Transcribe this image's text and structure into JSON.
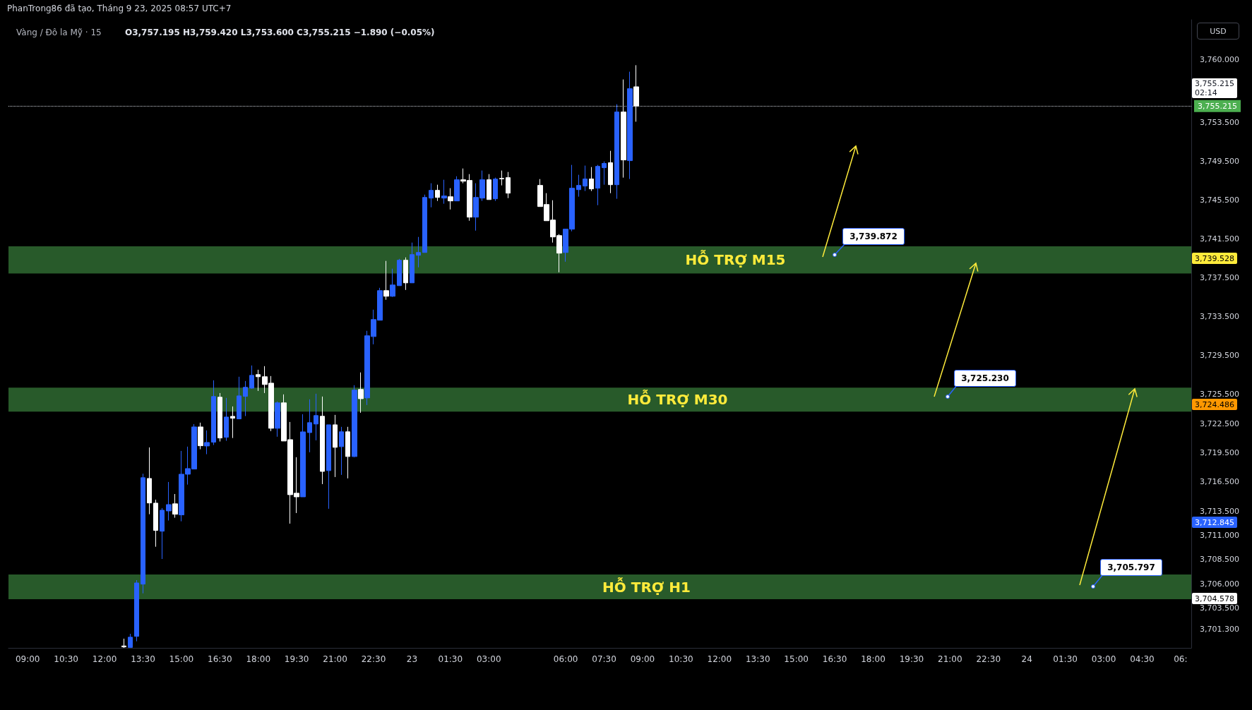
{
  "chart_data": {
    "type": "candlestick",
    "title": "Vàng / Đô la Mỹ · 15",
    "subtitle": "O3,757.195 H3,759.420 L3,753.600 C3,755.215 −1.890 (−0.05%)",
    "annotations": [
      "PhanTrong86 đã tạo, Tháng 9 23, 2025 08:57 UTC+7",
      "USD",
      "3,755.215",
      "02:14",
      "3,739.872",
      "3,725.230",
      "3,705.797",
      "3,739.528",
      "3,724.486",
      "3,712.845",
      "3,704.578"
    ],
    "x": [
      "2025-09-22T12:45",
      "2025-09-22T13:00",
      "2025-09-22T13:15",
      "2025-09-22T13:30",
      "2025-09-22T13:45",
      "2025-09-22T14:00",
      "2025-09-22T14:15",
      "2025-09-22T14:30",
      "2025-09-22T14:45",
      "2025-09-22T15:00",
      "2025-09-22T15:15",
      "2025-09-22T15:30",
      "2025-09-22T15:45",
      "2025-09-22T16:00",
      "2025-09-22T16:15",
      "2025-09-22T16:30",
      "2025-09-22T16:45",
      "2025-09-22T17:00",
      "2025-09-22T17:15",
      "2025-09-22T17:30",
      "2025-09-22T17:45",
      "2025-09-22T18:00",
      "2025-09-22T18:15",
      "2025-09-22T18:30",
      "2025-09-22T18:45",
      "2025-09-22T19:00",
      "2025-09-22T19:15",
      "2025-09-22T19:30",
      "2025-09-22T19:45",
      "2025-09-22T20:00",
      "2025-09-22T20:15",
      "2025-09-22T20:30",
      "2025-09-22T20:45",
      "2025-09-22T21:00",
      "2025-09-22T21:15",
      "2025-09-22T21:30",
      "2025-09-22T21:45",
      "2025-09-22T22:00",
      "2025-09-22T22:15",
      "2025-09-22T22:30",
      "2025-09-22T22:45",
      "2025-09-22T23:00",
      "2025-09-22T23:15",
      "2025-09-22T23:30",
      "2025-09-22T23:45",
      "2025-09-23T00:00",
      "2025-09-23T00:15",
      "2025-09-23T00:30",
      "2025-09-23T00:45",
      "2025-09-23T01:00",
      "2025-09-23T01:15",
      "2025-09-23T01:30",
      "2025-09-23T01:45",
      "2025-09-23T02:00",
      "2025-09-23T02:15",
      "2025-09-23T02:30",
      "2025-09-23T02:45",
      "2025-09-23T03:00",
      "2025-09-23T03:15",
      "2025-09-23T03:30",
      "2025-09-23T03:45",
      "2025-09-23T05:00",
      "2025-09-23T05:15",
      "2025-09-23T05:30",
      "2025-09-23T05:45",
      "2025-09-23T06:00",
      "2025-09-23T06:15",
      "2025-09-23T06:30",
      "2025-09-23T06:45",
      "2025-09-23T07:00",
      "2025-09-23T07:15",
      "2025-09-23T07:30",
      "2025-09-23T07:45",
      "2025-09-23T08:00",
      "2025-09-23T08:15",
      "2025-09-23T08:30",
      "2025-09-23T08:45"
    ],
    "ohlc": [
      [
        3699.6,
        3700.35,
        3699.4,
        3699.5
      ],
      [
        3699.45,
        3700.85,
        3699.45,
        3700.5
      ],
      [
        3700.59,
        3706.38,
        3700.08,
        3706.09
      ],
      [
        3705.97,
        3717.34,
        3705.02,
        3716.93
      ],
      [
        3716.85,
        3720.05,
        3713.17,
        3714.33
      ],
      [
        3714.31,
        3714.67,
        3709.82,
        3711.5
      ],
      [
        3711.42,
        3713.8,
        3708.56,
        3713.58
      ],
      [
        3713.51,
        3716.49,
        3712.52,
        3714.16
      ],
      [
        3714.24,
        3715.25,
        3712.81,
        3713.17
      ],
      [
        3713.1,
        3719.69,
        3712.44,
        3717.29
      ],
      [
        3717.29,
        3720.13,
        3716.22,
        3717.87
      ],
      [
        3717.82,
        3722.45,
        3717.82,
        3722.16
      ],
      [
        3722.16,
        3722.6,
        3719.86,
        3720.22
      ],
      [
        3720.2,
        3721.8,
        3719.35,
        3720.56
      ],
      [
        3720.59,
        3726.96,
        3720.3,
        3725.29
      ],
      [
        3725.22,
        3725.65,
        3720.66,
        3721.02
      ],
      [
        3721.1,
        3725.15,
        3720.73,
        3723.18
      ],
      [
        3723.25,
        3724.27,
        3721.02,
        3723.06
      ],
      [
        3722.99,
        3727.33,
        3722.99,
        3725.36
      ],
      [
        3725.31,
        3726.89,
        3723.28,
        3726.24
      ],
      [
        3726.16,
        3728.49,
        3726.09,
        3727.47
      ],
      [
        3727.55,
        3728.05,
        3725.87,
        3727.33
      ],
      [
        3727.33,
        3728.42,
        3725.65,
        3726.53
      ],
      [
        3726.67,
        3727.4,
        3721.73,
        3722.02
      ],
      [
        3722.02,
        3724.78,
        3721.15,
        3724.64
      ],
      [
        3724.64,
        3725.51,
        3720.71,
        3720.71
      ],
      [
        3720.85,
        3722.67,
        3712.2,
        3715.18
      ],
      [
        3715.33,
        3719.04,
        3713.29,
        3714.96
      ],
      [
        3714.96,
        3723.47,
        3714.96,
        3721.65
      ],
      [
        3721.58,
        3725.0,
        3719.55,
        3722.6
      ],
      [
        3722.46,
        3725.58,
        3720.78,
        3723.33
      ],
      [
        3723.26,
        3725.29,
        3716.27,
        3717.58
      ],
      [
        3717.66,
        3722.38,
        3713.73,
        3722.38
      ],
      [
        3722.38,
        3723.4,
        3717.0,
        3720.06
      ],
      [
        3720.13,
        3722.17,
        3717.22,
        3721.66
      ],
      [
        3721.66,
        3722.17,
        3716.86,
        3719.11
      ],
      [
        3719.11,
        3726.46,
        3719.04,
        3725.95
      ],
      [
        3726.02,
        3727.77,
        3723.62,
        3725.07
      ],
      [
        3725.15,
        3732.06,
        3724.42,
        3731.55
      ],
      [
        3731.47,
        3734.24,
        3730.67,
        3733.22
      ],
      [
        3733.15,
        3736.49,
        3733.15,
        3736.2
      ],
      [
        3736.2,
        3739.26,
        3735.26,
        3735.62
      ],
      [
        3735.62,
        3738.46,
        3735.55,
        3736.78
      ],
      [
        3736.71,
        3739.47,
        3736.71,
        3739.33
      ],
      [
        3739.33,
        3739.62,
        3736.27,
        3737.0
      ],
      [
        3737.0,
        3741.15,
        3737.0,
        3739.91
      ],
      [
        3739.84,
        3741.73,
        3738.6,
        3740.13
      ],
      [
        3740.13,
        3746.09,
        3740.13,
        3745.8
      ],
      [
        3745.73,
        3747.26,
        3744.78,
        3746.53
      ],
      [
        3746.53,
        3747.11,
        3745.44,
        3745.8
      ],
      [
        3745.73,
        3747.62,
        3745.15,
        3745.95
      ],
      [
        3745.87,
        3746.75,
        3744.56,
        3745.44
      ],
      [
        3745.44,
        3747.98,
        3745.44,
        3747.62
      ],
      [
        3747.62,
        3748.78,
        3747.26,
        3747.47
      ],
      [
        3747.55,
        3748.2,
        3743.4,
        3743.77
      ],
      [
        3743.77,
        3747.26,
        3742.38,
        3745.8
      ],
      [
        3745.73,
        3748.57,
        3745.44,
        3747.62
      ],
      [
        3747.62,
        3748.2,
        3745.58,
        3745.58
      ],
      [
        3745.66,
        3747.84,
        3745.44,
        3747.69
      ],
      [
        3747.76,
        3748.57,
        3747.04,
        3747.71
      ],
      [
        3747.84,
        3748.42,
        3745.73,
        3746.24
      ],
      [
        3747.04,
        3747.69,
        3744.86,
        3744.86
      ],
      [
        3745.07,
        3746.24,
        3743.4,
        3743.4
      ],
      [
        3743.47,
        3745.51,
        3741.15,
        3741.73
      ],
      [
        3741.87,
        3742.02,
        3738.09,
        3740.06
      ],
      [
        3740.13,
        3742.53,
        3739.18,
        3742.53
      ],
      [
        3742.53,
        3749.15,
        3742.31,
        3746.75
      ],
      [
        3746.6,
        3748.13,
        3745.88,
        3747.04
      ],
      [
        3746.97,
        3749.08,
        3746.46,
        3747.7
      ],
      [
        3747.7,
        3748.93,
        3746.46,
        3746.68
      ],
      [
        3746.75,
        3749.15,
        3745.0,
        3749.0
      ],
      [
        3748.86,
        3749.51,
        3747.11,
        3749.3
      ],
      [
        3749.37,
        3750.6,
        3746.24,
        3747.11
      ],
      [
        3747.11,
        3755.4,
        3745.66,
        3754.6
      ],
      [
        3754.6,
        3757.95,
        3747.84,
        3749.66
      ],
      [
        3749.59,
        3758.75,
        3747.7,
        3757.0
      ],
      [
        3757.195,
        3759.42,
        3753.6,
        3755.215
      ]
    ],
    "xlim": [
      "2025-09-22T08:15",
      "2025-09-24T06:25"
    ],
    "xticks": [
      {
        "value": "2025-09-22T09:00",
        "label": "09:00"
      },
      {
        "value": "2025-09-22T10:30",
        "label": "10:30"
      },
      {
        "value": "2025-09-22T12:00",
        "label": "12:00"
      },
      {
        "value": "2025-09-22T13:30",
        "label": "13:30"
      },
      {
        "value": "2025-09-22T15:00",
        "label": "15:00"
      },
      {
        "value": "2025-09-22T16:30",
        "label": "16:30"
      },
      {
        "value": "2025-09-22T18:00",
        "label": "18:00"
      },
      {
        "value": "2025-09-22T19:30",
        "label": "19:30"
      },
      {
        "value": "2025-09-22T21:00",
        "label": "21:00"
      },
      {
        "value": "2025-09-22T22:30",
        "label": "22:30"
      },
      {
        "value": "2025-09-23T00:00",
        "label": "23"
      },
      {
        "value": "2025-09-23T01:30",
        "label": "01:30"
      },
      {
        "value": "2025-09-23T03:00",
        "label": "03:00"
      },
      {
        "value": "2025-09-23T06:00",
        "label": "06:00"
      },
      {
        "value": "2025-09-23T07:30",
        "label": "07:30"
      },
      {
        "value": "2025-09-23T09:00",
        "label": "09:00"
      },
      {
        "value": "2025-09-23T10:30",
        "label": "10:30"
      },
      {
        "value": "2025-09-23T12:00",
        "label": "12:00"
      },
      {
        "value": "2025-09-23T13:30",
        "label": "13:30"
      },
      {
        "value": "2025-09-23T15:00",
        "label": "15:00"
      },
      {
        "value": "2025-09-23T16:30",
        "label": "16:30"
      },
      {
        "value": "2025-09-23T18:00",
        "label": "18:00"
      },
      {
        "value": "2025-09-23T19:30",
        "label": "19:30"
      },
      {
        "value": "2025-09-23T21:00",
        "label": "21:00"
      },
      {
        "value": "2025-09-23T22:30",
        "label": "22:30"
      },
      {
        "value": "2025-09-24T00:00",
        "label": "24"
      },
      {
        "value": "2025-09-24T01:30",
        "label": "01:30"
      },
      {
        "value": "2025-09-24T03:00",
        "label": "03:00"
      },
      {
        "value": "2025-09-24T04:30",
        "label": "04:30"
      },
      {
        "value": "2025-09-24T06:00",
        "label": "06:"
      }
    ],
    "ylim": [
      3699.4,
      3764.1
    ],
    "yticks": [
      {
        "value": 3760,
        "label": "3,760.000"
      },
      {
        "value": 3753.5,
        "label": "3,753.500"
      },
      {
        "value": 3749.5,
        "label": "3,749.500"
      },
      {
        "value": 3745.5,
        "label": "3,745.500"
      },
      {
        "value": 3741.5,
        "label": "3,741.500"
      },
      {
        "value": 3737.5,
        "label": "3,737.500"
      },
      {
        "value": 3733.5,
        "label": "3,733.500"
      },
      {
        "value": 3729.5,
        "label": "3,729.500"
      },
      {
        "value": 3725.5,
        "label": "3,725.500"
      },
      {
        "value": 3722.5,
        "label": "3,722.500"
      },
      {
        "value": 3719.5,
        "label": "3,719.500"
      },
      {
        "value": 3716.5,
        "label": "3,716.500"
      },
      {
        "value": 3713.5,
        "label": "3,713.500"
      },
      {
        "value": 3711,
        "label": "3,711.000"
      },
      {
        "value": 3708.5,
        "label": "3,708.500"
      },
      {
        "value": 3706,
        "label": "3,706.000"
      },
      {
        "value": 3703.5,
        "label": "3,703.500"
      },
      {
        "value": 3701.3,
        "label": "3,701.300"
      }
    ],
    "ref_lines": [
      {
        "axis": "y",
        "value": 3755.215,
        "label": "3,755.215",
        "color": "#d1d4dc",
        "line_style": "dotted"
      }
    ],
    "bands": [
      {
        "axis": "y",
        "from": 3737.96,
        "to": 3740.76,
        "label": "HỖ TRỢ M15",
        "color": "#285a2a"
      },
      {
        "axis": "y",
        "from": 3723.73,
        "to": 3726.2,
        "label": "HỖ TRỢ M30",
        "color": "#285a2a"
      },
      {
        "axis": "y",
        "from": 3704.41,
        "to": 3706.96,
        "label": "HỖ TRỢ H1",
        "color": "#285a2a"
      }
    ],
    "grid": false
  }
}
